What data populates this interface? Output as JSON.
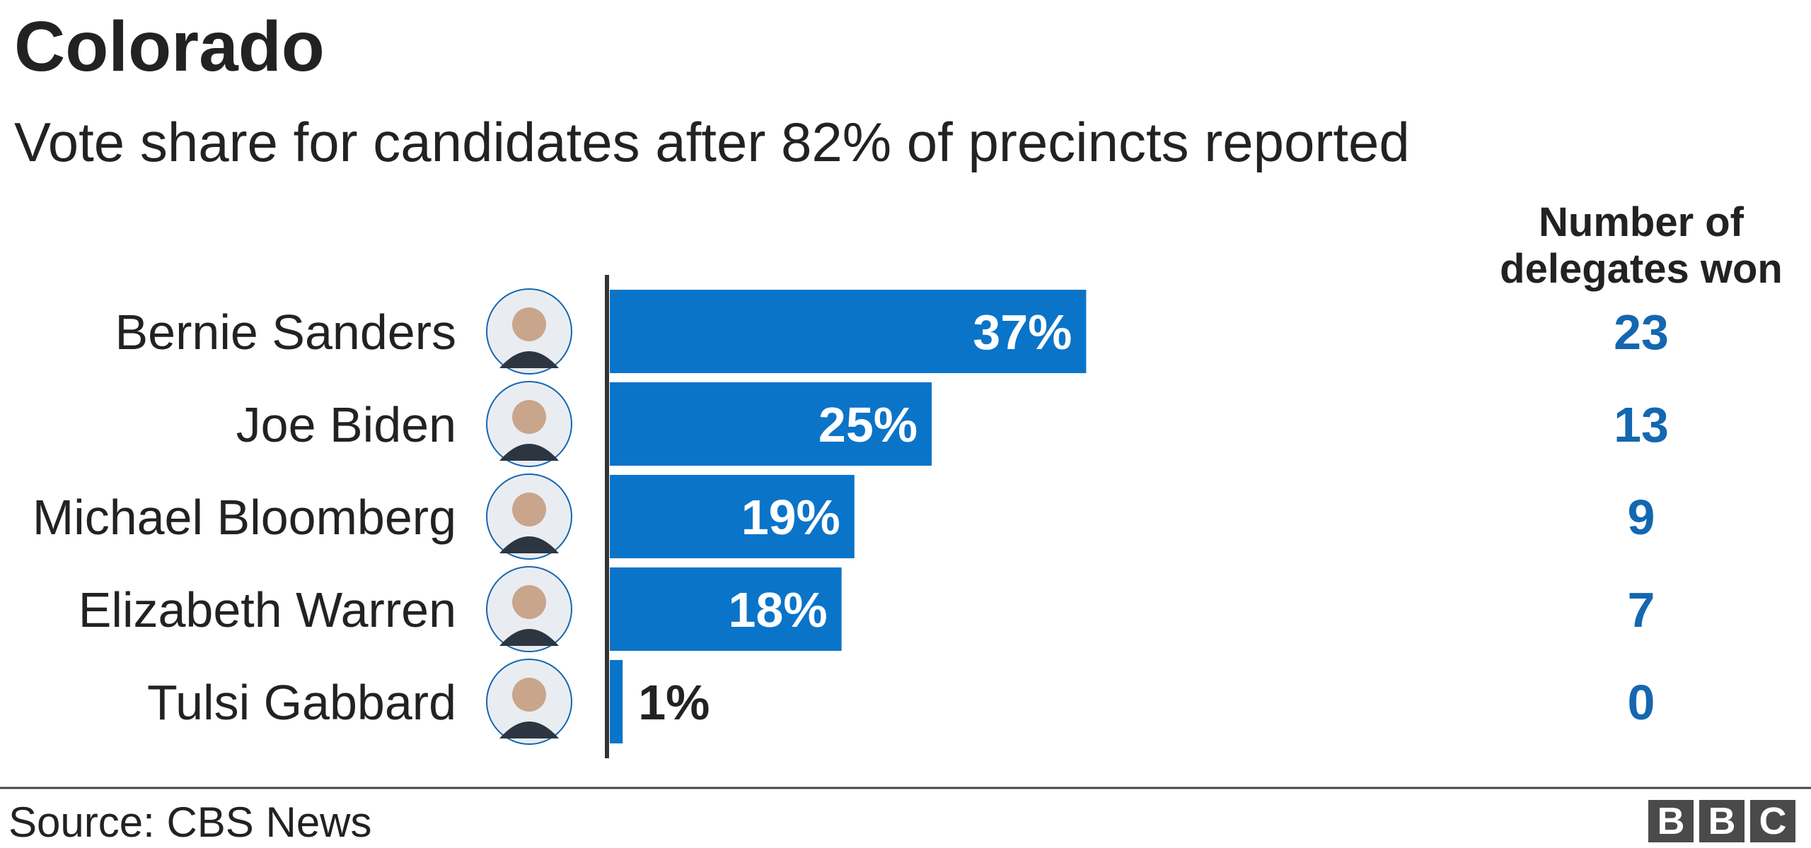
{
  "chart_data": {
    "type": "bar",
    "orientation": "horizontal",
    "title": "Colorado",
    "subtitle": "Vote share for candidates after 82% of precincts reported",
    "categories": [
      "Bernie Sanders",
      "Joe Biden",
      "Michael Bloomberg",
      "Elizabeth Warren",
      "Tulsi Gabbard"
    ],
    "values": [
      37,
      25,
      19,
      18,
      1
    ],
    "value_labels": [
      "37%",
      "25%",
      "19%",
      "18%",
      "1%"
    ],
    "color": "#0a74c9",
    "delegates": {
      "title": "Number of delegates won",
      "values": [
        23,
        13,
        9,
        7,
        0
      ],
      "color": "#1467b0"
    },
    "source": "Source: CBS News",
    "logo": [
      "B",
      "B",
      "C"
    ]
  }
}
